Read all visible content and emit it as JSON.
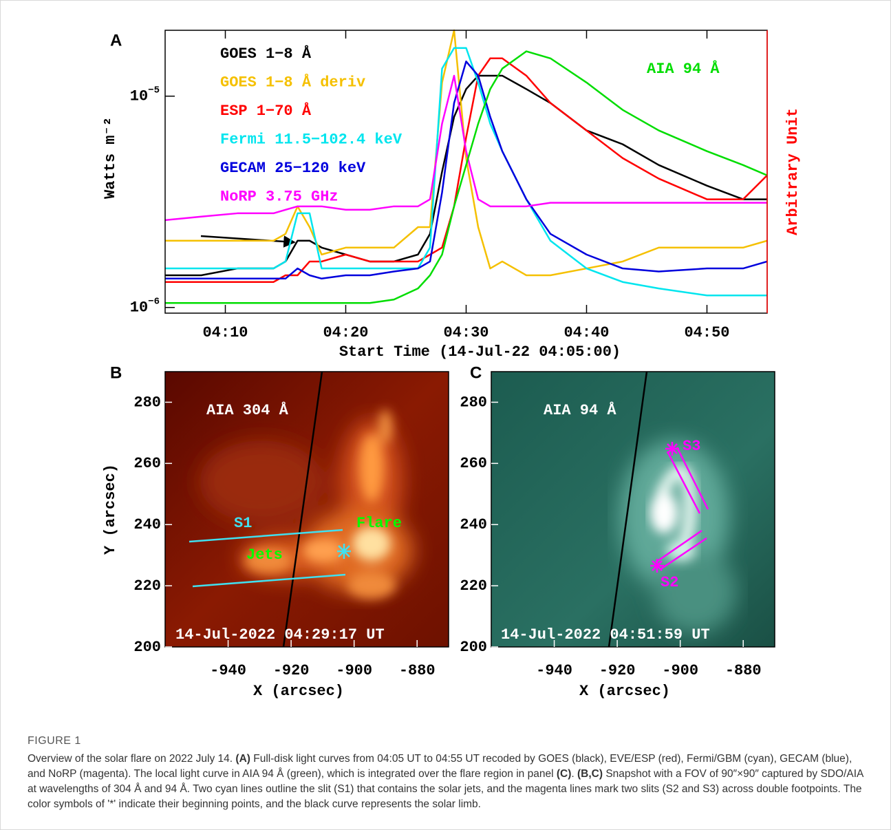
{
  "chart_data": [
    {
      "type": "line",
      "panel": "A",
      "log_y": true,
      "xlabel": "Start Time (14-Jul-22 04:05:00)",
      "ylabel": "Watts m⁻²",
      "y2label": "Arbitrary Unit",
      "x": [
        5,
        8,
        11,
        14,
        15,
        16,
        17,
        18,
        20,
        22,
        24,
        26,
        27,
        28,
        29,
        30,
        31,
        32,
        33,
        35,
        37,
        40,
        43,
        46,
        50,
        53,
        55
      ],
      "xlim": [
        5,
        55
      ],
      "xticks": [
        {
          "value": 10,
          "label": "04:10"
        },
        {
          "value": 20,
          "label": "04:20"
        },
        {
          "value": 30,
          "label": "04:30"
        },
        {
          "value": 40,
          "label": "04:40"
        },
        {
          "value": 50,
          "label": "04:50"
        }
      ],
      "ylim": [
        9.4e-07,
        2.05e-05
      ],
      "yticks": [
        {
          "value": 1e-05,
          "label": "10",
          "exponent": "−5"
        },
        {
          "value": 1e-06,
          "label": "10",
          "exponent": "−6"
        }
      ],
      "series": [
        {
          "name": "GOES 1−8 Å",
          "color": "#000000",
          "values": [
            1.42e-06,
            1.42e-06,
            1.53e-06,
            1.53e-06,
            1.65e-06,
            2.07e-06,
            2.07e-06,
            1.92e-06,
            1.78e-06,
            1.65e-06,
            1.65e-06,
            1.78e-06,
            2.23e-06,
            4.39e-06,
            7.98e-06,
            1.08e-05,
            1.25e-05,
            1.25e-05,
            1.25e-05,
            1.08e-05,
            9.28e-06,
            6.88e-06,
            5.92e-06,
            4.72e-06,
            3.77e-06,
            3.25e-06,
            3.25e-06
          ]
        },
        {
          "name": "GOES 1−8 Å deriv",
          "color": "#f5c000",
          "values": [
            2.07e-06,
            2.07e-06,
            2.07e-06,
            2.07e-06,
            2.23e-06,
            3.01e-06,
            2.4e-06,
            1.78e-06,
            1.92e-06,
            1.92e-06,
            1.92e-06,
            2.4e-06,
            2.4e-06,
            1.16e-05,
            2.05e-05,
            5.09e-06,
            2.4e-06,
            1.53e-06,
            1.65e-06,
            1.42e-06,
            1.42e-06,
            1.53e-06,
            1.65e-06,
            1.92e-06,
            1.92e-06,
            1.92e-06,
            2.07e-06
          ]
        },
        {
          "name": "ESP 1−70 Å",
          "color": "#ff0000",
          "values": [
            1.32e-06,
            1.32e-06,
            1.32e-06,
            1.32e-06,
            1.42e-06,
            1.42e-06,
            1.65e-06,
            1.65e-06,
            1.78e-06,
            1.65e-06,
            1.65e-06,
            1.65e-06,
            1.78e-06,
            1.92e-06,
            3.01e-06,
            6.38e-06,
            1.25e-05,
            1.51e-05,
            1.51e-05,
            1.25e-05,
            9.28e-06,
            6.88e-06,
            5.09e-06,
            4.07e-06,
            3.25e-06,
            3.25e-06,
            4.22e-06
          ]
        },
        {
          "name": "Fermi 11.5−102.4 keV",
          "color": "#00e5ee",
          "values": [
            1.53e-06,
            1.53e-06,
            1.53e-06,
            1.53e-06,
            1.65e-06,
            2.79e-06,
            2.79e-06,
            1.53e-06,
            1.53e-06,
            1.53e-06,
            1.53e-06,
            1.53e-06,
            1.92e-06,
            1.35e-05,
            1.69e-05,
            1.69e-05,
            1.16e-05,
            7.41e-06,
            5.49e-06,
            3.25e-06,
            2.07e-06,
            1.53e-06,
            1.32e-06,
            1.23e-06,
            1.14e-06,
            1.14e-06,
            1.14e-06
          ]
        },
        {
          "name": "GECAM 25−120 keV",
          "color": "#0000dd",
          "values": [
            1.37e-06,
            1.37e-06,
            1.37e-06,
            1.37e-06,
            1.37e-06,
            1.53e-06,
            1.42e-06,
            1.37e-06,
            1.42e-06,
            1.42e-06,
            1.48e-06,
            1.53e-06,
            1.65e-06,
            3.5e-06,
            9.28e-06,
            1.46e-05,
            1.25e-05,
            7.98e-06,
            5.49e-06,
            3.25e-06,
            2.23e-06,
            1.78e-06,
            1.53e-06,
            1.48e-06,
            1.53e-06,
            1.53e-06,
            1.65e-06
          ]
        },
        {
          "name": "NoRP 3.75 GHz",
          "color": "#ff00ff",
          "values": [
            2.59e-06,
            2.69e-06,
            2.79e-06,
            2.79e-06,
            2.9e-06,
            3.01e-06,
            3.01e-06,
            3.01e-06,
            2.9e-06,
            2.9e-06,
            3.01e-06,
            3.01e-06,
            3.25e-06,
            7.41e-06,
            1.25e-05,
            5.49e-06,
            3.25e-06,
            3.01e-06,
            3.01e-06,
            3.01e-06,
            3.13e-06,
            3.13e-06,
            3.13e-06,
            3.13e-06,
            3.13e-06,
            3.13e-06,
            3.13e-06
          ]
        },
        {
          "name": "AIA 94 Å",
          "color": "#00dd00",
          "values": [
            1.05e-06,
            1.05e-06,
            1.05e-06,
            1.05e-06,
            1.05e-06,
            1.05e-06,
            1.05e-06,
            1.05e-06,
            1.05e-06,
            1.05e-06,
            1.09e-06,
            1.23e-06,
            1.42e-06,
            1.78e-06,
            3.01e-06,
            4.72e-06,
            7.41e-06,
            1.08e-05,
            1.35e-05,
            1.63e-05,
            1.51e-05,
            1.16e-05,
            8.61e-06,
            6.88e-06,
            5.49e-06,
            4.72e-06,
            4.22e-06
          ]
        }
      ]
    },
    {
      "type": "image",
      "panel": "B",
      "xlabel": "X (arcsec)",
      "ylabel": "Y (arcsec)",
      "xlim": [
        -960,
        -870
      ],
      "xticks": [
        -940,
        -920,
        -900,
        -880
      ],
      "ylim": [
        200,
        290
      ],
      "yticks": [
        200,
        220,
        240,
        260,
        280
      ],
      "annotations": [
        {
          "text": "AIA 304 Å",
          "color": "#ffffff"
        },
        {
          "text": "S1",
          "color": "#40e0f0"
        },
        {
          "text": "Flare",
          "color": "#00ff00"
        },
        {
          "text": "Jets",
          "color": "#00ff00"
        },
        {
          "text": "14-Jul-2022 04:29:17 UT",
          "color": "#ffffff"
        }
      ]
    },
    {
      "type": "image",
      "panel": "C",
      "xlabel": "X (arcsec)",
      "xlim": [
        -960,
        -870
      ],
      "xticks": [
        -940,
        -920,
        -900,
        -880
      ],
      "ylim": [
        200,
        290
      ],
      "yticks": [
        200,
        220,
        240,
        260,
        280
      ],
      "annotations": [
        {
          "text": "AIA 94 Å",
          "color": "#ffffff"
        },
        {
          "text": "S3",
          "color": "#ff00ff"
        },
        {
          "text": "S2",
          "color": "#ff00ff"
        },
        {
          "text": "14-Jul-2022 04:51:59 UT",
          "color": "#ffffff"
        }
      ]
    }
  ],
  "caption": {
    "label": "FIGURE 1",
    "parts": [
      {
        "text": "Overview of the solar flare on 2022 July 14. "
      },
      {
        "text": "(A)",
        "bold": true
      },
      {
        "text": " Full-disk light curves from 04:05 UT to 04:55 UT recoded by GOES (black), EVE/ESP (red), Fermi/GBM (cyan), GECAM (blue), and NoRP (magenta). The local light curve in AIA 94 Å (green), which is integrated over the flare region in panel "
      },
      {
        "text": "(C)",
        "bold": true
      },
      {
        "text": ". "
      },
      {
        "text": "(B,C)",
        "bold": true
      },
      {
        "text": " Snapshot with a FOV of 90″×90″ captured by SDO/AIA at wavelengths of 304 Å and 94 Å. Two cyan lines outline the slit (S1) that contains the solar jets, and the magenta lines mark two slits (S2 and S3) across double footpoints. The color symbols of '*' indicate their beginning points, and the black curve represents the solar limb."
      }
    ]
  }
}
